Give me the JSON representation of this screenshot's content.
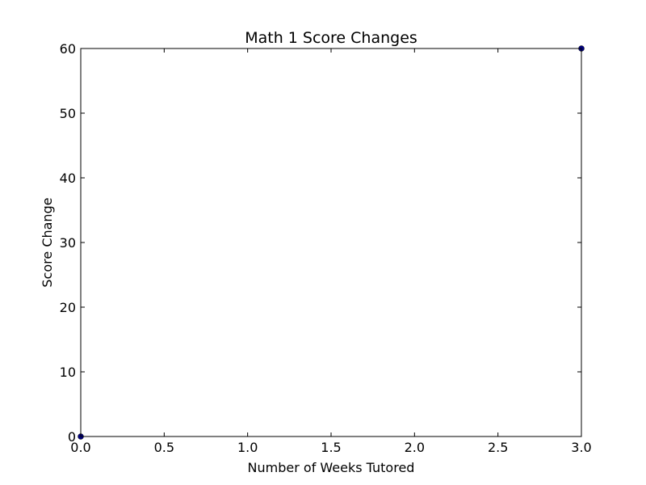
{
  "chart_data": {
    "type": "scatter",
    "title": "Math 1 Score Changes",
    "xlabel": "Number of Weeks Tutored",
    "ylabel": "Score Change",
    "xlim": [
      0.0,
      3.0
    ],
    "ylim": [
      0,
      60
    ],
    "x_ticks": [
      0.0,
      0.5,
      1.0,
      1.5,
      2.0,
      2.5,
      3.0
    ],
    "x_tick_labels": [
      "0.0",
      "0.5",
      "1.0",
      "1.5",
      "2.0",
      "2.5",
      "3.0"
    ],
    "y_ticks": [
      0,
      10,
      20,
      30,
      40,
      50,
      60
    ],
    "y_tick_labels": [
      "0",
      "10",
      "20",
      "30",
      "40",
      "50",
      "60"
    ],
    "grid": false,
    "series": [
      {
        "color": "#000080",
        "points": [
          {
            "x": 0.0,
            "y": 0
          },
          {
            "x": 3.0,
            "y": 60
          }
        ]
      }
    ]
  }
}
